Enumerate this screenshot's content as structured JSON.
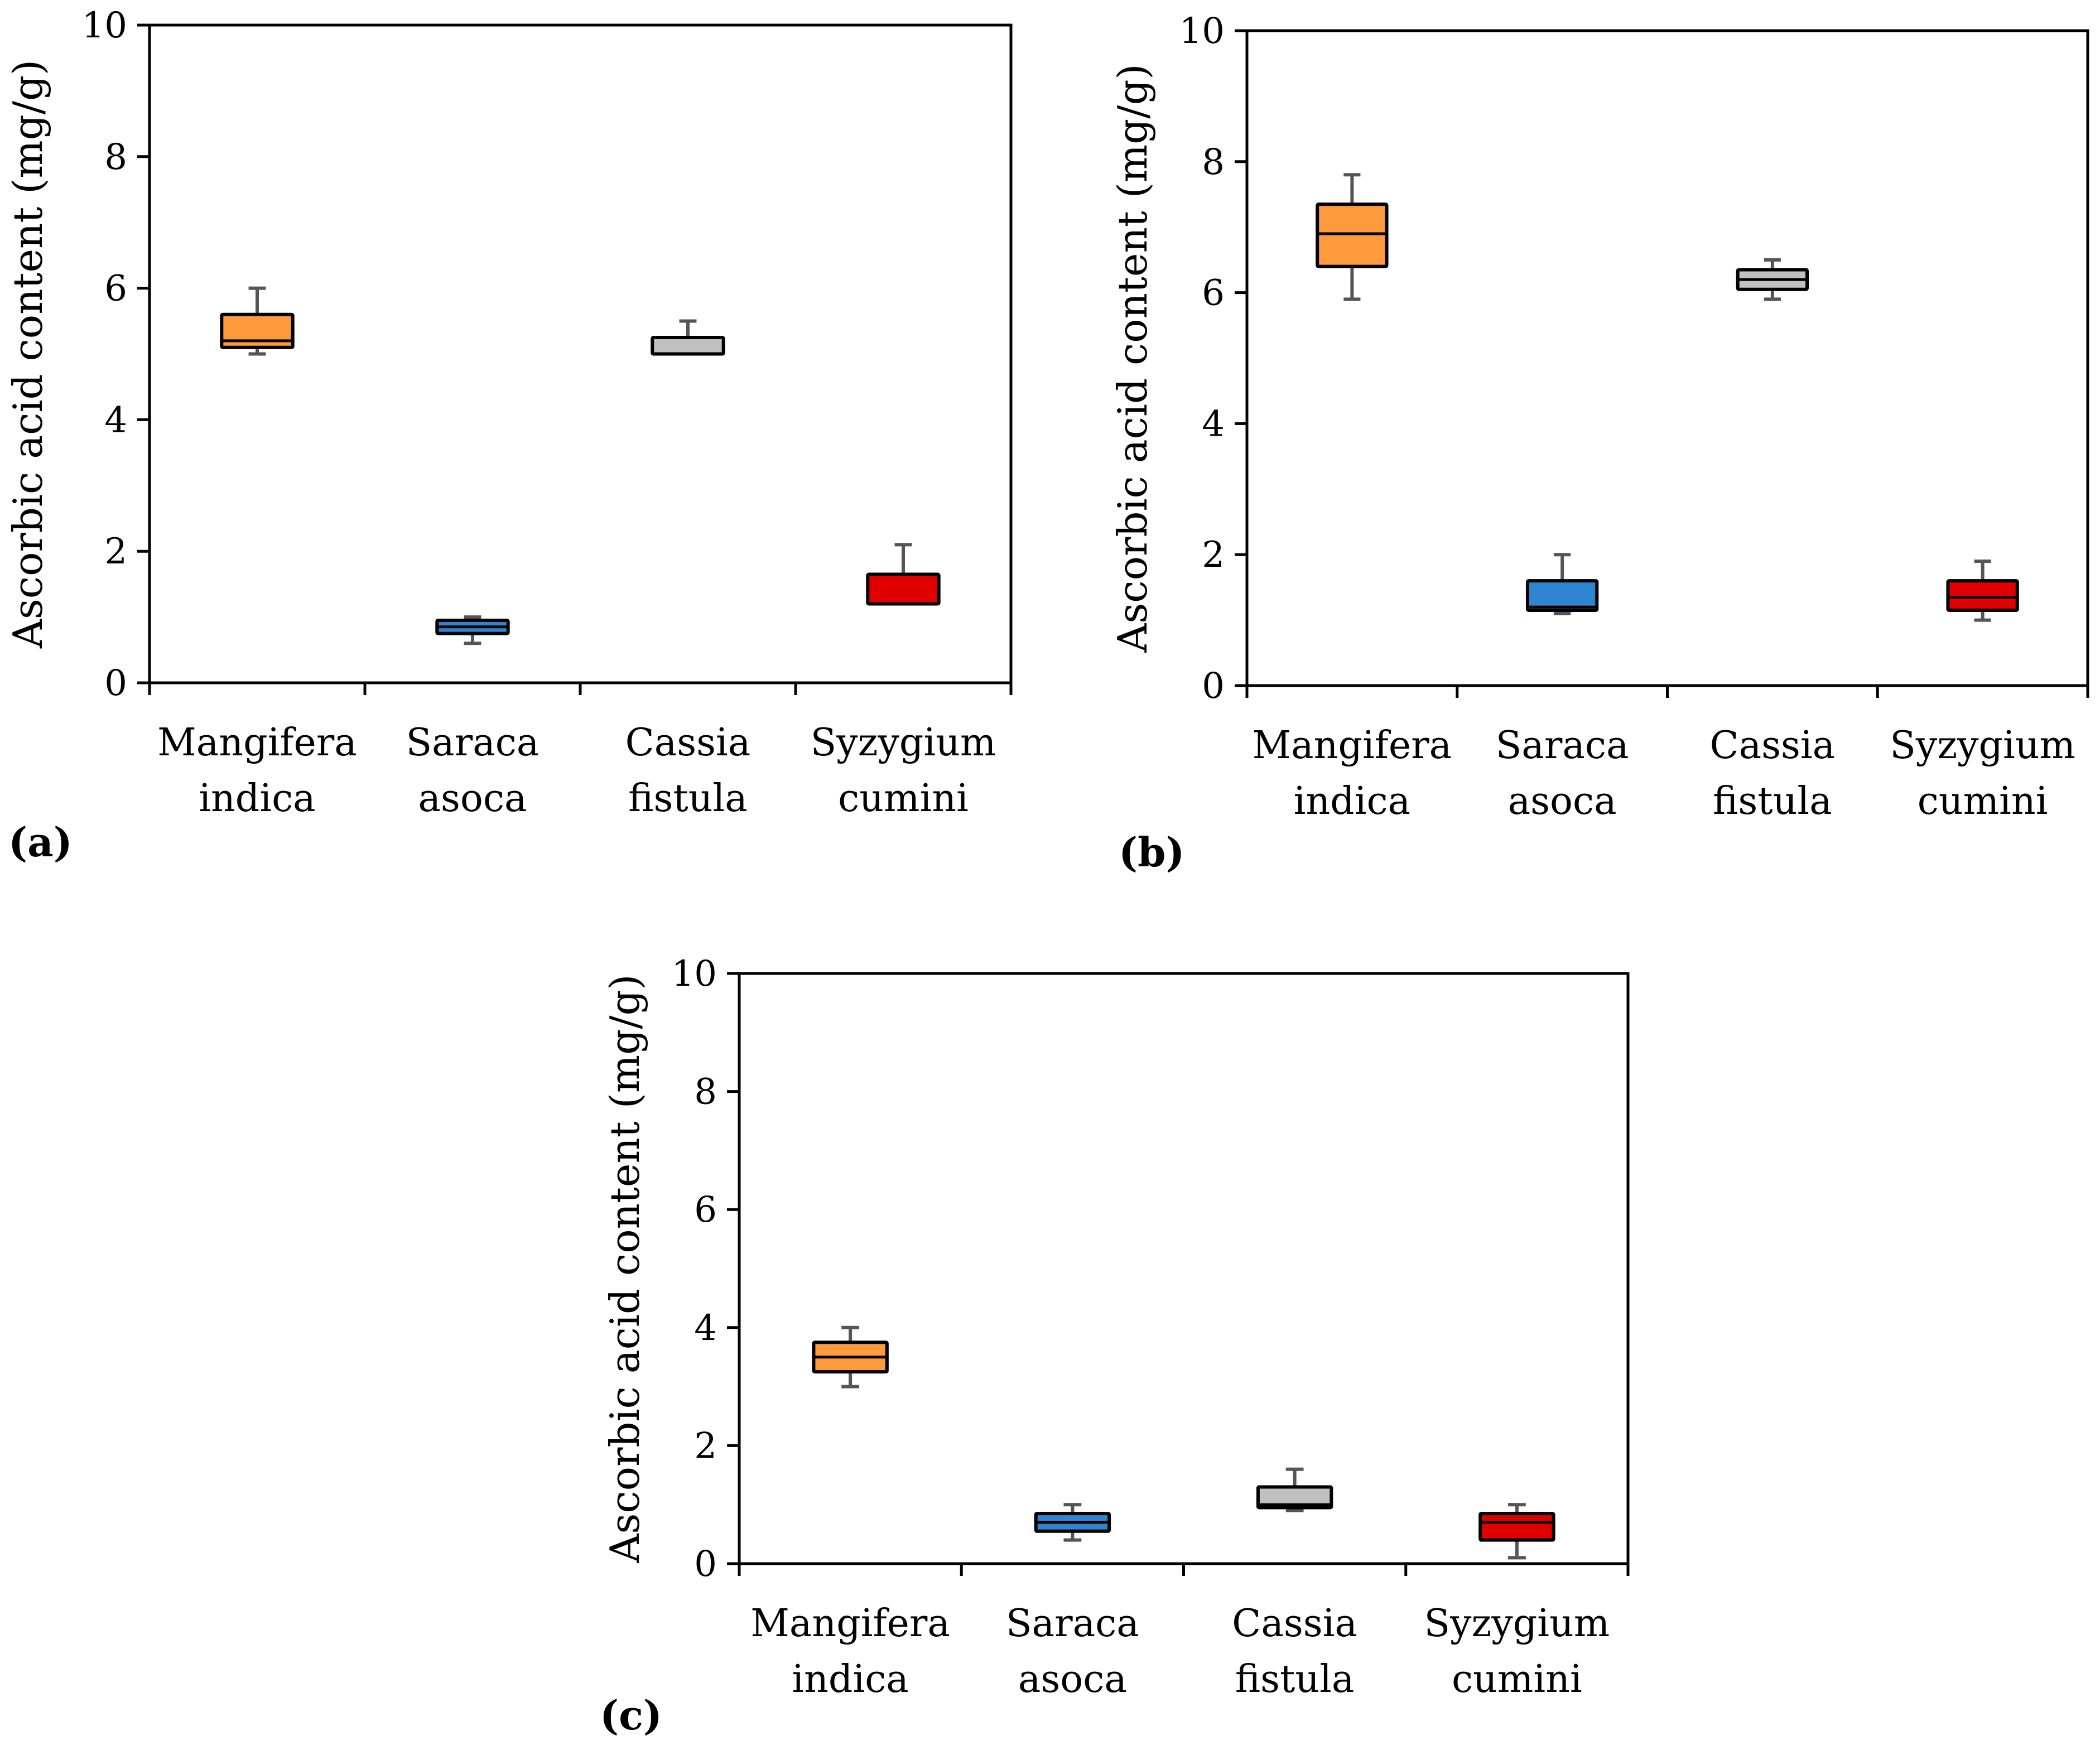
{
  "figure": {
    "y_axis_title": "Ascorbic acid content (mg/g)",
    "colors": {
      "Mangifera indica": "#FF9A3D",
      "Saraca asoca": "#2F86D0",
      "Cassia fistula": "#C0C0C0",
      "Syzygium cumini": "#E10000",
      "whisker": "#555555",
      "outline": "#000000"
    }
  },
  "chart_data": [
    {
      "panel": "a",
      "panel_label": "(a)",
      "type": "boxplot",
      "title": "",
      "xlabel": "",
      "ylabel": "Ascorbic acid content (mg/g)",
      "ylim": [
        0,
        10
      ],
      "yticks": [
        0,
        2,
        4,
        6,
        8,
        10
      ],
      "categories": [
        {
          "line1": "Mangifera",
          "line2": "indica",
          "color": "#FF9A3D",
          "min": 5.0,
          "q1": 5.1,
          "median": 5.2,
          "q3": 5.6,
          "max": 6.0
        },
        {
          "line1": "Saraca",
          "line2": "asoca",
          "color": "#2F86D0",
          "min": 0.6,
          "q1": 0.75,
          "median": 0.85,
          "q3": 0.95,
          "max": 1.0
        },
        {
          "line1": "Cassia",
          "line2": "fistula",
          "color": "#C0C0C0",
          "min": 5.0,
          "q1": 5.0,
          "median": 5.0,
          "q3": 5.25,
          "max": 5.5
        },
        {
          "line1": "Syzygium",
          "line2": "cumini",
          "color": "#E10000",
          "min": 1.2,
          "q1": 1.2,
          "median": 1.2,
          "q3": 1.65,
          "max": 2.1
        }
      ]
    },
    {
      "panel": "b",
      "panel_label": "(b)",
      "type": "boxplot",
      "title": "",
      "xlabel": "",
      "ylabel": "Ascorbic acid content (mg/g)",
      "ylim": [
        0,
        10
      ],
      "yticks": [
        0,
        2,
        4,
        6,
        8,
        10
      ],
      "categories": [
        {
          "line1": "Mangifera",
          "line2": "indica",
          "color": "#FF9A3D",
          "min": 5.9,
          "q1": 6.4,
          "median": 6.9,
          "q3": 7.35,
          "max": 7.8
        },
        {
          "line1": "Saraca",
          "line2": "asoca",
          "color": "#2F86D0",
          "min": 1.1,
          "q1": 1.15,
          "median": 1.2,
          "q3": 1.6,
          "max": 2.0
        },
        {
          "line1": "Cassia",
          "line2": "fistula",
          "color": "#C0C0C0",
          "min": 5.9,
          "q1": 6.05,
          "median": 6.2,
          "q3": 6.35,
          "max": 6.5
        },
        {
          "line1": "Syzygium",
          "line2": "cumini",
          "color": "#E10000",
          "min": 1.0,
          "q1": 1.15,
          "median": 1.35,
          "q3": 1.6,
          "max": 1.9
        }
      ]
    },
    {
      "panel": "c",
      "panel_label": "(c)",
      "type": "boxplot",
      "title": "",
      "xlabel": "",
      "ylabel": "Ascorbic acid content (mg/g)",
      "ylim": [
        0,
        10
      ],
      "yticks": [
        0,
        2,
        4,
        6,
        8,
        10
      ],
      "categories": [
        {
          "line1": "Mangifera",
          "line2": "indica",
          "color": "#FF9A3D",
          "min": 3.0,
          "q1": 3.25,
          "median": 3.5,
          "q3": 3.75,
          "max": 4.0
        },
        {
          "line1": "Saraca",
          "line2": "asoca",
          "color": "#2F86D0",
          "min": 0.4,
          "q1": 0.55,
          "median": 0.7,
          "q3": 0.85,
          "max": 1.0
        },
        {
          "line1": "Cassia",
          "line2": "fistula",
          "color": "#C0C0C0",
          "min": 0.9,
          "q1": 0.95,
          "median": 1.0,
          "q3": 1.3,
          "max": 1.6
        },
        {
          "line1": "Syzygium",
          "line2": "cumini",
          "color": "#E10000",
          "min": 0.1,
          "q1": 0.4,
          "median": 0.7,
          "q3": 0.85,
          "max": 1.0
        }
      ]
    }
  ]
}
